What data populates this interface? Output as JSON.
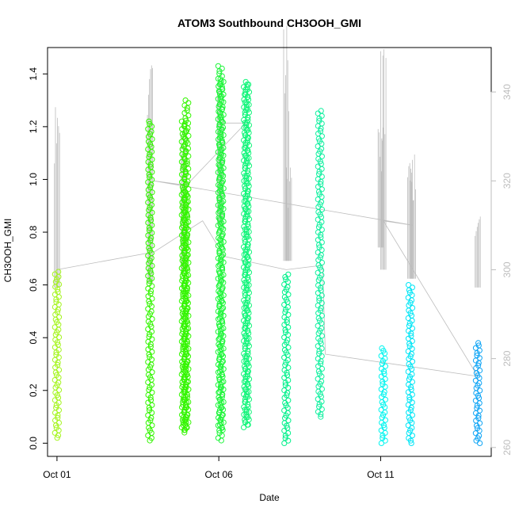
{
  "chart_data": {
    "type": "scatter",
    "title": "ATOM3 Southbound CH3OOH_GMI",
    "xlabel": "Date",
    "ylabel": "CH3OOH_GMI",
    "x_type": "date",
    "x_ticks": [
      {
        "value": "2017-10-01",
        "label": "Oct 01"
      },
      {
        "value": "2017-10-06",
        "label": "Oct 06"
      },
      {
        "value": "2017-10-11",
        "label": "Oct 11"
      }
    ],
    "y_ticks": [
      "0.0",
      "0.2",
      "0.4",
      "0.6",
      "0.8",
      "1.0",
      "1.2",
      "1.4"
    ],
    "y_right_ticks": [
      "260",
      "280",
      "300",
      "320",
      "340"
    ],
    "xlim": [
      "2017-09-30T17:00",
      "2017-10-14T10:00"
    ],
    "ylim": [
      -0.05,
      1.5
    ],
    "y_right_lim": [
      258,
      350
    ],
    "grid": false,
    "colors": {
      "right_axis": "#bdbdbd",
      "line_series": "#bdbdbd"
    },
    "series": [
      {
        "color": "#a5f51f",
        "segments": [
          {
            "date": "2017-10-01T00:00",
            "ymin": 0.02,
            "ymax": 0.65
          }
        ]
      },
      {
        "color": "#33f500",
        "segments": [
          {
            "date": "2017-10-03T21:00",
            "ymin": 0.01,
            "ymax": 1.22
          },
          {
            "date": "2017-10-04T22:00",
            "ymin": 0.05,
            "ymax": 1.22
          },
          {
            "date": "2017-10-04T23:00",
            "ymin": 0.04,
            "ymax": 0.95
          },
          {
            "date": "2017-10-05T00:00",
            "ymin": 0.06,
            "ymax": 1.3
          }
        ]
      },
      {
        "color": "#1ef53a",
        "segments": [
          {
            "date": "2017-10-06T01:00",
            "ymin": 0.01,
            "ymax": 1.43
          },
          {
            "date": "2017-10-06T02:00",
            "ymin": 0.05,
            "ymax": 1.38
          }
        ]
      },
      {
        "color": "#12f57a",
        "segments": [
          {
            "date": "2017-10-06T20:00",
            "ymin": 0.06,
            "ymax": 1.37
          },
          {
            "date": "2017-10-06T21:00",
            "ymin": 0.07,
            "ymax": 1.36
          }
        ]
      },
      {
        "color": "#00f08a",
        "segments": [
          {
            "date": "2017-10-08T02:00",
            "ymin": 0.0,
            "ymax": 0.64
          }
        ]
      },
      {
        "color": "#12f0a0",
        "segments": [
          {
            "date": "2017-10-09T03:00",
            "ymin": 0.1,
            "ymax": 1.26
          }
        ]
      },
      {
        "color": "#00f5ef",
        "segments": [
          {
            "date": "2017-10-11T02:00",
            "ymin": 0.0,
            "ymax": 0.36
          }
        ]
      },
      {
        "color": "#00e5f5",
        "segments": [
          {
            "date": "2017-10-11T22:00",
            "ymin": 0.0,
            "ymax": 0.6
          }
        ]
      },
      {
        "color": "#10a5f5",
        "segments": [
          {
            "date": "2017-10-14T00:00",
            "ymin": 0.0,
            "ymax": 0.38
          }
        ]
      }
    ],
    "line_series": {
      "axis": "right",
      "spikes": [
        {
          "date": "2017-10-01T00:00",
          "low": 296,
          "high": 338
        },
        {
          "date": "2017-10-03T21:00",
          "low": 297,
          "high": 346
        },
        {
          "date": "2017-10-04T22:00",
          "low": 300,
          "high": 335
        },
        {
          "date": "2017-10-06T01:00",
          "low": 310,
          "high": 342
        },
        {
          "date": "2017-10-08T02:00",
          "low": 302,
          "high": 355
        },
        {
          "date": "2017-10-08T04:00",
          "low": 302,
          "high": 323
        },
        {
          "date": "2017-10-11T00:00",
          "low": 305,
          "high": 332
        },
        {
          "date": "2017-10-11T02:00",
          "low": 300,
          "high": 352
        },
        {
          "date": "2017-10-11T22:00",
          "low": 298,
          "high": 324
        },
        {
          "date": "2017-10-12T00:00",
          "low": 298,
          "high": 326
        },
        {
          "date": "2017-10-14T00:00",
          "low": 296,
          "high": 313
        }
      ],
      "path": [
        {
          "date": "2017-10-01T00:00",
          "value": 300
        },
        {
          "date": "2017-10-04T00:00",
          "value": 304
        },
        {
          "date": "2017-10-05T12:00",
          "value": 311
        },
        {
          "date": "2017-10-06T04:00",
          "value": 303
        },
        {
          "date": "2017-10-08T02:00",
          "value": 300
        },
        {
          "date": "2017-10-09T05:00",
          "value": 301
        },
        {
          "date": "2017-10-09T07:00",
          "value": 281
        },
        {
          "date": "2017-10-14T00:00",
          "value": 276
        },
        {
          "date": "2017-10-11T02:00",
          "value": 311
        },
        {
          "date": "2017-10-12T00:00",
          "value": 310
        },
        {
          "date": "2017-10-04T00:00",
          "value": 320
        },
        {
          "date": "2017-10-05T00:00",
          "value": 319
        },
        {
          "date": "2017-10-06T20:00",
          "value": 333
        },
        {
          "date": "2017-10-06T00:00",
          "value": 333
        }
      ]
    }
  }
}
